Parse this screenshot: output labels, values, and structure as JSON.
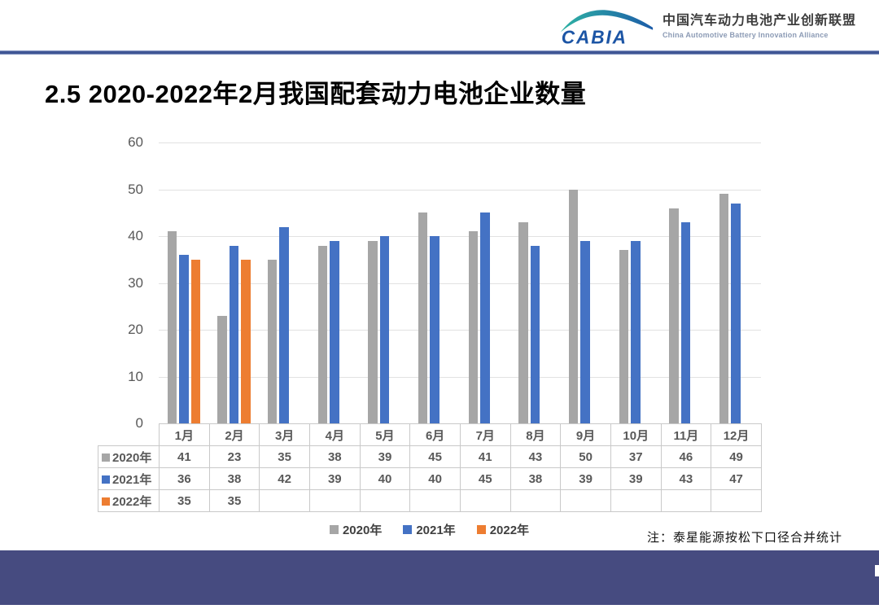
{
  "header": {
    "logo_abbr": "CABIA",
    "org_name_zh": "中国汽车动力电池产业创新联盟",
    "org_name_en": "China Automotive Battery Innovation Alliance"
  },
  "title": "2.5 2020-2022年2月我国配套动力电池企业数量",
  "note": "注：泰星能源按松下口径合并统计",
  "chart_data": {
    "type": "bar",
    "title": "",
    "xlabel": "",
    "ylabel": "",
    "categories": [
      "1月",
      "2月",
      "3月",
      "4月",
      "5月",
      "6月",
      "7月",
      "8月",
      "9月",
      "10月",
      "11月",
      "12月"
    ],
    "series": [
      {
        "name": "2020年",
        "color": "#A6A6A6",
        "values": [
          41,
          23,
          35,
          38,
          39,
          45,
          41,
          43,
          50,
          37,
          46,
          49
        ]
      },
      {
        "name": "2021年",
        "color": "#4472C4",
        "values": [
          36,
          38,
          42,
          39,
          40,
          40,
          45,
          38,
          39,
          39,
          43,
          47
        ]
      },
      {
        "name": "2022年",
        "color": "#ED7D31",
        "values": [
          35,
          35,
          null,
          null,
          null,
          null,
          null,
          null,
          null,
          null,
          null,
          null
        ]
      }
    ],
    "ylim": [
      0,
      60
    ],
    "ytick_step": 10,
    "grid": true,
    "legend_position": "bottom",
    "data_table_shown": true
  },
  "colors": {
    "bar_2020": "#A6A6A6",
    "bar_2021": "#4472C4",
    "bar_2022": "#ED7D31",
    "footer_bar": "#464B80",
    "header_rule": "#3D5493",
    "gridline": "#E2E2E2",
    "table_border": "#C9C9C9"
  }
}
